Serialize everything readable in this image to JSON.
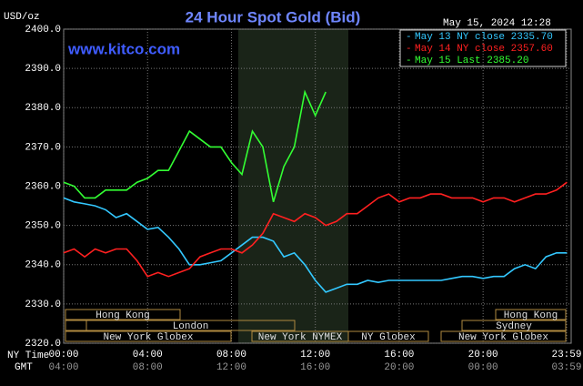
{
  "chart_data": {
    "type": "line",
    "title": "24 Hour Spot Gold (Bid)",
    "ylabel": "USD/oz",
    "timestamp": "May 15, 2024 12:28",
    "watermark": "www.kitco.com",
    "xlabel": "NY Time",
    "x2label": "GMT",
    "x": [
      0,
      0.5,
      1,
      1.5,
      2,
      2.5,
      3,
      3.5,
      4,
      4.5,
      5,
      5.5,
      6,
      6.5,
      7,
      7.5,
      8,
      8.5,
      9,
      9.5,
      10,
      10.5,
      11,
      11.5,
      12,
      12.5,
      13,
      13.5,
      14,
      14.5,
      15,
      15.5,
      16,
      16.5,
      17,
      17.5,
      18,
      18.5,
      19,
      19.5,
      20,
      20.5,
      21,
      21.5,
      22,
      22.5,
      23,
      23.5,
      24
    ],
    "xlim": [
      0,
      24.2
    ],
    "xticks": [
      {
        "value": 0,
        "label": "00:00"
      },
      {
        "value": 4,
        "label": "04:00"
      },
      {
        "value": 8,
        "label": "08:00"
      },
      {
        "value": 12,
        "label": "12:00"
      },
      {
        "value": 16,
        "label": "16:00"
      },
      {
        "value": 20,
        "label": "20:00"
      },
      {
        "value": 23.983,
        "label": "23:59"
      }
    ],
    "x2ticks": [
      {
        "value": 0,
        "label": "04:00"
      },
      {
        "value": 4,
        "label": "08:00"
      },
      {
        "value": 8,
        "label": "12:00"
      },
      {
        "value": 12,
        "label": "16:00"
      },
      {
        "value": 16,
        "label": "20:00"
      },
      {
        "value": 20,
        "label": "00:00"
      },
      {
        "value": 23.983,
        "label": "03:59"
      }
    ],
    "ylim": [
      2320,
      2400
    ],
    "yticks": [
      {
        "value": 2320,
        "label": "2320.0"
      },
      {
        "value": 2330,
        "label": "2330.0"
      },
      {
        "value": 2340,
        "label": "2340.0"
      },
      {
        "value": 2350,
        "label": "2350.0"
      },
      {
        "value": 2360,
        "label": "2360.0"
      },
      {
        "value": 2370,
        "label": "2370.0"
      },
      {
        "value": 2380,
        "label": "2380.0"
      },
      {
        "value": 2390,
        "label": "2390.0"
      },
      {
        "value": 2400,
        "label": "2400.0"
      }
    ],
    "grid": true,
    "series": [
      {
        "name": "May 13 NY close 2335.70",
        "color": "#33c8ff",
        "values": [
          2357,
          2356,
          2355.5,
          2355,
          2354,
          2352,
          2353,
          2351,
          2349,
          2349.5,
          2347,
          2344,
          2340,
          2340,
          2340.5,
          2341,
          2343,
          2345,
          2347,
          2347,
          2346,
          2342,
          2343,
          2340,
          2336,
          2333,
          2334,
          2335,
          2335,
          2336,
          2335.5,
          2336,
          2336,
          2336,
          2336,
          2336,
          2336,
          2336.5,
          2337,
          2337,
          2336.5,
          2337,
          2337,
          2339,
          2340,
          2339,
          2342,
          2343,
          2343
        ]
      },
      {
        "name": "May 14 NY close 2357.60",
        "color": "#ff2020",
        "values": [
          2343,
          2344,
          2342,
          2344,
          2343,
          2344,
          2344,
          2341,
          2337,
          2338,
          2337,
          2338,
          2339,
          2342,
          2343,
          2344,
          2344,
          2343,
          2345,
          2348,
          2353,
          2352,
          2351,
          2353,
          2352,
          2350,
          2351,
          2353,
          2353,
          2355,
          2357,
          2358,
          2356,
          2357,
          2357,
          2358,
          2358,
          2357,
          2357,
          2357,
          2356,
          2357,
          2357,
          2356,
          2357,
          2358,
          2358,
          2359,
          2361
        ]
      },
      {
        "name": "May 15 Last 2385.20",
        "color": "#33ff33",
        "values": [
          2361,
          2360,
          2357,
          2357,
          2359,
          2359,
          2359,
          2361,
          2362,
          2364,
          2364,
          2369,
          2374,
          2372,
          2370,
          2370,
          2366,
          2363,
          2374,
          2370,
          2356,
          2365,
          2370,
          2384,
          2378,
          2384,
          null,
          null,
          null,
          null,
          null,
          null,
          null,
          null,
          null,
          null,
          null,
          null,
          null,
          null,
          null,
          null,
          null,
          null,
          null,
          null,
          null,
          null,
          null
        ]
      }
    ],
    "sessions": [
      "Hong Kong",
      "Hong Kong",
      "London",
      "Sydney",
      "New York Globex",
      "New York NYMEX",
      "NY Globex",
      "New York Globex"
    ]
  }
}
